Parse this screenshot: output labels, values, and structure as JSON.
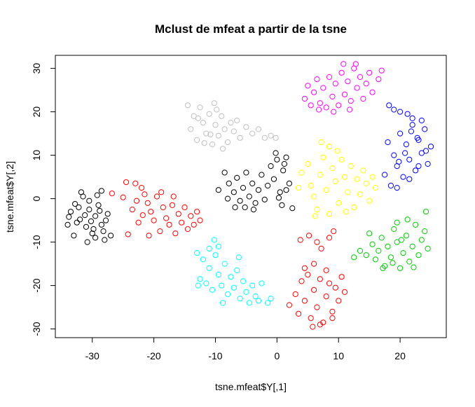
{
  "chart_data": {
    "type": "scatter",
    "title": "Mclust de mfeat a partir de la tsne",
    "xlabel": "tsne.mfeat$Y[,1]",
    "ylabel": "tsne.mfeat$Y[,2]",
    "xlim": [
      -36,
      27.5
    ],
    "ylim": [
      -32,
      33
    ],
    "x_ticks": [
      -30,
      -20,
      -10,
      0,
      10,
      20
    ],
    "y_ticks": [
      -30,
      -20,
      -10,
      0,
      10,
      20,
      30
    ],
    "x_tick_labels": [
      "-30",
      "-20",
      "-10",
      "0",
      "10",
      "20"
    ],
    "y_tick_labels": [
      "-30",
      "-20",
      "-10",
      "0",
      "10",
      "20",
      "30"
    ],
    "grid": false,
    "legend": "none",
    "marker": "open-circle",
    "series": [
      {
        "color": "#000000",
        "points": [
          [
            -33.5,
            -3.0
          ],
          [
            -32.8,
            -1.2
          ],
          [
            -32.0,
            -4.8
          ],
          [
            -31.5,
            0.5
          ],
          [
            -31.0,
            -6.5
          ],
          [
            -30.5,
            -2.5
          ],
          [
            -30.0,
            -8.0
          ],
          [
            -29.5,
            -4.0
          ],
          [
            -29.0,
            -1.5
          ],
          [
            -28.5,
            -6.0
          ],
          [
            -28.0,
            -9.5
          ],
          [
            -27.5,
            -3.5
          ],
          [
            -34.0,
            -6.0
          ],
          [
            -33.0,
            -8.5
          ],
          [
            -31.8,
            1.5
          ],
          [
            -30.8,
            -10.0
          ],
          [
            -29.2,
            0.8
          ],
          [
            -28.2,
            -7.5
          ],
          [
            -27.0,
            -8.5
          ],
          [
            -32.5,
            -5.5
          ],
          [
            -31.2,
            -3.8
          ],
          [
            -30.2,
            -5.2
          ],
          [
            -29.8,
            -7.0
          ],
          [
            -28.8,
            -2.8
          ],
          [
            -33.8,
            -4.2
          ],
          [
            -32.2,
            -2.0
          ],
          [
            -30.5,
            -0.5
          ],
          [
            -29.5,
            -9.0
          ],
          [
            -28.5,
            1.8
          ],
          [
            -27.8,
            -5.0
          ]
        ]
      },
      {
        "color": "#000000",
        "points": [
          [
            -8.5,
            6.0
          ],
          [
            -7.8,
            3.5
          ],
          [
            -7.0,
            1.5
          ],
          [
            -6.5,
            4.8
          ],
          [
            -6.0,
            -0.5
          ],
          [
            -5.5,
            2.5
          ],
          [
            -5.0,
            6.0
          ],
          [
            -4.5,
            0.5
          ],
          [
            -4.0,
            3.5
          ],
          [
            -3.5,
            -1.0
          ],
          [
            -3.0,
            2.0
          ],
          [
            -2.5,
            5.5
          ],
          [
            -2.0,
            -0.2
          ],
          [
            -1.5,
            3.0
          ],
          [
            -1.0,
            7.5
          ],
          [
            -0.5,
            4.5
          ],
          [
            0.0,
            9.0
          ],
          [
            0.5,
            1.5
          ],
          [
            1.0,
            6.5
          ],
          [
            1.5,
            9.5
          ],
          [
            2.0,
            3.5
          ],
          [
            0.8,
            -1.5
          ],
          [
            -6.8,
            -2.0
          ],
          [
            -3.8,
            -2.5
          ],
          [
            1.2,
            8.0
          ],
          [
            -0.2,
            10.5
          ],
          [
            2.5,
            -2.2
          ],
          [
            -5.2,
            -2.0
          ],
          [
            -9.5,
            2.0
          ],
          [
            -8.0,
            0.0
          ],
          [
            1.5,
            2.0
          ],
          [
            0.3,
            0.2
          ]
        ]
      },
      {
        "color": "#ff0000",
        "points": [
          [
            -24.5,
            3.8
          ],
          [
            -23.0,
            3.5
          ],
          [
            -22.0,
            2.5
          ],
          [
            -21.5,
            1.0
          ],
          [
            -21.0,
            -1.0
          ],
          [
            -20.5,
            -3.0
          ],
          [
            -20.0,
            -5.0
          ],
          [
            -19.5,
            0.5
          ],
          [
            -19.0,
            -7.5
          ],
          [
            -18.5,
            -2.0
          ],
          [
            -18.0,
            -4.5
          ],
          [
            -17.5,
            -6.0
          ],
          [
            -17.0,
            -1.5
          ],
          [
            -16.5,
            -8.0
          ],
          [
            -16.0,
            -3.5
          ],
          [
            -15.5,
            -5.5
          ],
          [
            -15.0,
            -2.0
          ],
          [
            -14.5,
            -7.0
          ],
          [
            -14.0,
            -4.0
          ],
          [
            -13.5,
            -6.0
          ],
          [
            -13.0,
            -3.0
          ],
          [
            -12.5,
            -5.0
          ],
          [
            -23.5,
            -2.5
          ],
          [
            -22.5,
            -5.5
          ],
          [
            -21.8,
            -3.8
          ],
          [
            -22.8,
            -0.5
          ],
          [
            -20.8,
            -8.5
          ],
          [
            -18.8,
            1.5
          ],
          [
            -16.8,
            0.5
          ],
          [
            -24.2,
            -8.2
          ],
          [
            -26.8,
            1.2
          ],
          [
            -25.0,
            0.3
          ]
        ]
      },
      {
        "color": "#ff0000",
        "points": [
          [
            2.0,
            -24.5
          ],
          [
            3.0,
            -22.0
          ],
          [
            3.5,
            -26.5
          ],
          [
            4.0,
            -19.0
          ],
          [
            4.5,
            -23.5
          ],
          [
            5.0,
            -17.5
          ],
          [
            5.5,
            -27.5
          ],
          [
            6.0,
            -21.0
          ],
          [
            6.5,
            -25.0
          ],
          [
            7.0,
            -18.5
          ],
          [
            7.5,
            -28.5
          ],
          [
            8.0,
            -22.5
          ],
          [
            8.5,
            -19.5
          ],
          [
            9.0,
            -26.0
          ],
          [
            9.5,
            -20.5
          ],
          [
            10.0,
            -23.5
          ],
          [
            10.5,
            -18.0
          ],
          [
            11.0,
            -21.5
          ],
          [
            3.8,
            -9.5
          ],
          [
            5.2,
            -8.5
          ],
          [
            6.5,
            -10.0
          ],
          [
            7.2,
            -11.5
          ],
          [
            8.5,
            -9.0
          ],
          [
            9.2,
            -7.5
          ],
          [
            4.5,
            -16.0
          ],
          [
            6.0,
            -15.0
          ],
          [
            8.0,
            -16.5
          ],
          [
            5.8,
            -29.5
          ],
          [
            7.0,
            -29.0
          ],
          [
            9.0,
            -27.5
          ]
        ]
      },
      {
        "color": "#c0c0c0",
        "points": [
          [
            -14.5,
            21.5
          ],
          [
            -14.0,
            16.0
          ],
          [
            -13.5,
            19.0
          ],
          [
            -13.0,
            13.5
          ],
          [
            -12.5,
            21.0
          ],
          [
            -12.0,
            17.5
          ],
          [
            -11.5,
            15.0
          ],
          [
            -11.0,
            19.5
          ],
          [
            -10.5,
            12.5
          ],
          [
            -10.0,
            17.0
          ],
          [
            -9.5,
            14.5
          ],
          [
            -9.0,
            19.0
          ],
          [
            -8.5,
            16.0
          ],
          [
            -8.0,
            13.0
          ],
          [
            -7.5,
            17.5
          ],
          [
            -7.0,
            15.5
          ],
          [
            -6.5,
            18.0
          ],
          [
            -6.0,
            14.0
          ],
          [
            -5.0,
            16.5
          ],
          [
            -4.0,
            15.0
          ],
          [
            -3.0,
            16.0
          ],
          [
            -2.0,
            14.0
          ],
          [
            -1.0,
            14.5
          ],
          [
            -0.2,
            14.0
          ],
          [
            -12.8,
            18.5
          ],
          [
            -11.8,
            12.8
          ],
          [
            -10.8,
            14.8
          ],
          [
            -9.8,
            20.5
          ],
          [
            -8.8,
            11.5
          ],
          [
            -10.2,
            22.0
          ]
        ]
      },
      {
        "color": "#00ffff",
        "points": [
          [
            -13.0,
            -12.5
          ],
          [
            -12.5,
            -18.5
          ],
          [
            -12.0,
            -14.0
          ],
          [
            -11.5,
            -19.5
          ],
          [
            -11.0,
            -16.0
          ],
          [
            -10.5,
            -21.0
          ],
          [
            -10.0,
            -13.0
          ],
          [
            -9.5,
            -17.5
          ],
          [
            -9.0,
            -20.0
          ],
          [
            -8.5,
            -15.0
          ],
          [
            -8.0,
            -22.0
          ],
          [
            -7.5,
            -18.0
          ],
          [
            -7.0,
            -20.5
          ],
          [
            -6.5,
            -16.5
          ],
          [
            -6.0,
            -23.0
          ],
          [
            -5.5,
            -19.0
          ],
          [
            -5.0,
            -21.5
          ],
          [
            -4.5,
            -24.0
          ],
          [
            -4.0,
            -20.0
          ],
          [
            -3.5,
            -22.5
          ],
          [
            -3.0,
            -23.5
          ],
          [
            -2.5,
            -19.5
          ],
          [
            -1.5,
            -24.0
          ],
          [
            -10.2,
            -9.5
          ],
          [
            -9.5,
            -11.0
          ],
          [
            -11.0,
            -11.5
          ],
          [
            -12.8,
            -20.0
          ],
          [
            -8.8,
            -24.0
          ],
          [
            -6.2,
            -13.5
          ],
          [
            -1.0,
            -23.0
          ]
        ]
      },
      {
        "color": "#ff00ff",
        "points": [
          [
            4.5,
            23.0
          ],
          [
            5.0,
            26.0
          ],
          [
            5.5,
            21.5
          ],
          [
            6.0,
            24.5
          ],
          [
            6.5,
            27.5
          ],
          [
            7.0,
            22.0
          ],
          [
            7.5,
            25.5
          ],
          [
            8.0,
            21.0
          ],
          [
            8.5,
            28.0
          ],
          [
            9.0,
            23.5
          ],
          [
            9.5,
            26.5
          ],
          [
            10.0,
            21.5
          ],
          [
            10.5,
            29.0
          ],
          [
            11.0,
            24.0
          ],
          [
            11.5,
            27.0
          ],
          [
            12.0,
            22.5
          ],
          [
            12.5,
            30.0
          ],
          [
            13.0,
            25.5
          ],
          [
            13.5,
            28.0
          ],
          [
            14.0,
            23.0
          ],
          [
            14.5,
            26.5
          ],
          [
            15.0,
            29.0
          ],
          [
            15.5,
            24.5
          ],
          [
            16.5,
            27.5
          ],
          [
            17.0,
            29.5
          ],
          [
            10.8,
            31.0
          ],
          [
            12.8,
            31.0
          ],
          [
            6.8,
            20.5
          ],
          [
            9.2,
            20.0
          ],
          [
            11.8,
            20.5
          ]
        ]
      },
      {
        "color": "#ffff00",
        "points": [
          [
            4.0,
            6.0
          ],
          [
            5.0,
            8.0
          ],
          [
            5.5,
            3.0
          ],
          [
            6.0,
            0.5
          ],
          [
            6.5,
            -2.5
          ],
          [
            7.0,
            5.5
          ],
          [
            7.5,
            9.5
          ],
          [
            8.0,
            2.0
          ],
          [
            8.5,
            -3.5
          ],
          [
            9.0,
            7.0
          ],
          [
            9.5,
            4.0
          ],
          [
            10.0,
            -1.0
          ],
          [
            10.5,
            9.0
          ],
          [
            11.0,
            5.0
          ],
          [
            11.5,
            1.5
          ],
          [
            12.0,
            7.5
          ],
          [
            12.5,
            -2.0
          ],
          [
            13.0,
            4.5
          ],
          [
            13.5,
            1.0
          ],
          [
            14.0,
            6.5
          ],
          [
            14.5,
            3.5
          ],
          [
            15.0,
            -0.5
          ],
          [
            15.5,
            5.0
          ],
          [
            16.0,
            2.5
          ],
          [
            7.2,
            13.0
          ],
          [
            8.5,
            12.0
          ],
          [
            9.8,
            11.0
          ],
          [
            6.2,
            -4.0
          ],
          [
            11.2,
            -3.0
          ],
          [
            3.5,
            2.5
          ]
        ]
      },
      {
        "color": "#0000ff",
        "points": [
          [
            17.5,
            5.5
          ],
          [
            18.0,
            13.0
          ],
          [
            18.5,
            3.0
          ],
          [
            19.0,
            10.0
          ],
          [
            19.5,
            7.5
          ],
          [
            20.0,
            15.0
          ],
          [
            20.5,
            5.0
          ],
          [
            21.0,
            12.5
          ],
          [
            21.5,
            9.0
          ],
          [
            22.0,
            17.0
          ],
          [
            22.5,
            6.5
          ],
          [
            23.0,
            13.5
          ],
          [
            23.5,
            10.5
          ],
          [
            24.0,
            16.0
          ],
          [
            24.5,
            8.0
          ],
          [
            25.0,
            12.0
          ],
          [
            18.2,
            21.5
          ],
          [
            19.0,
            20.5
          ],
          [
            20.0,
            20.0
          ],
          [
            21.2,
            19.5
          ],
          [
            22.0,
            18.5
          ],
          [
            23.5,
            18.0
          ],
          [
            19.5,
            2.5
          ],
          [
            21.5,
            4.5
          ],
          [
            23.0,
            7.5
          ],
          [
            24.2,
            11.0
          ],
          [
            20.8,
            10.5
          ],
          [
            22.8,
            14.0
          ],
          [
            19.8,
            8.5
          ],
          [
            21.8,
            15.5
          ]
        ]
      },
      {
        "color": "#00cd00",
        "points": [
          [
            12.5,
            -13.5
          ],
          [
            13.5,
            -12.0
          ],
          [
            14.5,
            -13.0
          ],
          [
            15.5,
            -10.5
          ],
          [
            16.0,
            -14.0
          ],
          [
            16.5,
            -12.0
          ],
          [
            17.0,
            -9.0
          ],
          [
            17.5,
            -15.5
          ],
          [
            18.0,
            -11.0
          ],
          [
            18.5,
            -13.5
          ],
          [
            19.0,
            -7.0
          ],
          [
            19.5,
            -10.0
          ],
          [
            20.0,
            -16.0
          ],
          [
            20.5,
            -12.5
          ],
          [
            21.0,
            -8.5
          ],
          [
            21.5,
            -14.5
          ],
          [
            22.0,
            -11.0
          ],
          [
            22.5,
            -6.0
          ],
          [
            23.0,
            -13.0
          ],
          [
            23.5,
            -9.5
          ],
          [
            24.0,
            -7.5
          ],
          [
            24.5,
            -11.5
          ],
          [
            24.2,
            -3.0
          ],
          [
            19.5,
            -5.5
          ],
          [
            17.2,
            -16.0
          ],
          [
            18.8,
            -14.8
          ],
          [
            21.2,
            -4.8
          ],
          [
            15.0,
            -8.0
          ],
          [
            20.2,
            -9.5
          ],
          [
            22.2,
            -15.8
          ]
        ]
      }
    ]
  }
}
